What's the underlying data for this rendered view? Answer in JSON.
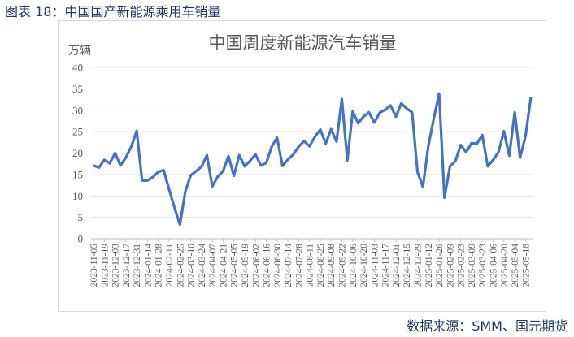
{
  "caption": "图表 18：中国国产新能源乘用车销量",
  "source": "数据来源：SMM、国元期货",
  "chart_data": {
    "type": "line",
    "title": "中国周度新能源汽车销量",
    "ylabel": "万辆",
    "xlabel": "",
    "ylim": [
      0,
      40
    ],
    "yticks": [
      0,
      5,
      10,
      15,
      20,
      25,
      30,
      35,
      40
    ],
    "grid": true,
    "line_color": "#4472c4",
    "x": [
      "2023-11-05",
      "2023-11-12",
      "2023-11-19",
      "2023-11-26",
      "2023-12-03",
      "2023-12-10",
      "2023-12-17",
      "2023-12-24",
      "2023-12-31",
      "2024-01-07",
      "2024-01-14",
      "2024-01-21",
      "2024-01-28",
      "2024-02-04",
      "2024-02-11",
      "2024-02-18",
      "2024-02-25",
      "2024-03-03",
      "2024-03-10",
      "2024-03-17",
      "2024-03-24",
      "2024-03-31",
      "2024-04-07",
      "2024-04-14",
      "2024-04-21",
      "2024-04-28",
      "2024-05-05",
      "2024-05-12",
      "2024-05-19",
      "2024-05-26",
      "2024-06-02",
      "2024-06-09",
      "2024-06-16",
      "2024-06-23",
      "2024-06-30",
      "2024-07-07",
      "2024-07-14",
      "2024-07-21",
      "2024-07-28",
      "2024-08-04",
      "2024-08-11",
      "2024-08-18",
      "2024-08-25",
      "2024-09-01",
      "2024-09-08",
      "2024-09-15",
      "2024-09-22",
      "2024-09-29",
      "2024-10-06",
      "2024-10-13",
      "2024-10-20",
      "2024-10-27",
      "2024-11-03",
      "2024-11-10",
      "2024-11-17",
      "2024-11-24",
      "2024-12-01",
      "2024-12-08",
      "2024-12-15",
      "2024-12-22",
      "2024-12-29",
      "2025-01-05",
      "2025-01-12",
      "2025-01-19",
      "2025-01-26",
      "2025-02-02",
      "2025-02-09",
      "2025-02-16",
      "2025-02-23",
      "2025-03-02",
      "2025-03-09",
      "2025-03-16",
      "2025-03-23",
      "2025-03-30",
      "2025-04-06",
      "2025-04-13",
      "2025-04-20",
      "2025-04-27",
      "2025-05-04",
      "2025-05-11",
      "2025-05-18",
      "2025-05-25"
    ],
    "x_tick_labels": [
      "2023-11-05",
      "2023-11-19",
      "2023-12-03",
      "2023-12-17",
      "2023-12-31",
      "2024-01-14",
      "2024-01-28",
      "2024-02-11",
      "2024-02-25",
      "2024-03-10",
      "2024-03-24",
      "2024-04-07",
      "2024-04-21",
      "2024-05-05",
      "2024-05-19",
      "2024-06-02",
      "2024-06-16",
      "2024-06-30",
      "2024-07-14",
      "2024-07-28",
      "2024-08-11",
      "2024-08-25",
      "2024-09-08",
      "2024-09-22",
      "2024-10-06",
      "2024-10-20",
      "2024-11-03",
      "2024-11-17",
      "2024-12-01",
      "2024-12-15",
      "2024-12-29",
      "2025-01-12",
      "2025-01-26",
      "2025-02-09",
      "2025-02-23",
      "2025-03-09",
      "2025-03-23",
      "2025-04-06",
      "2025-04-20",
      "2025-05-04",
      "2025-05-18"
    ],
    "values": [
      17.1,
      16.6,
      18.4,
      17.6,
      20.0,
      17.1,
      19.0,
      21.5,
      25.2,
      13.6,
      13.6,
      14.4,
      15.6,
      16.0,
      11.5,
      7.3,
      3.3,
      11.0,
      14.8,
      15.8,
      16.8,
      19.5,
      12.2,
      14.5,
      15.8,
      19.3,
      14.7,
      19.5,
      16.9,
      18.2,
      19.7,
      17.1,
      17.7,
      21.5,
      23.6,
      17.0,
      18.5,
      19.7,
      21.5,
      22.8,
      21.6,
      23.8,
      25.5,
      22.2,
      25.6,
      22.7,
      32.6,
      18.3,
      29.7,
      27.0,
      28.5,
      29.5,
      27.1,
      29.4,
      30.1,
      31.1,
      28.5,
      31.6,
      30.4,
      29.5,
      15.6,
      12.1,
      21.6,
      27.9,
      33.9,
      9.6,
      16.9,
      18.1,
      21.9,
      20.2,
      22.3,
      22.2,
      24.2,
      16.9,
      18.4,
      20.2,
      25.1,
      19.4,
      29.5,
      18.9,
      24.0,
      33.1
    ]
  }
}
